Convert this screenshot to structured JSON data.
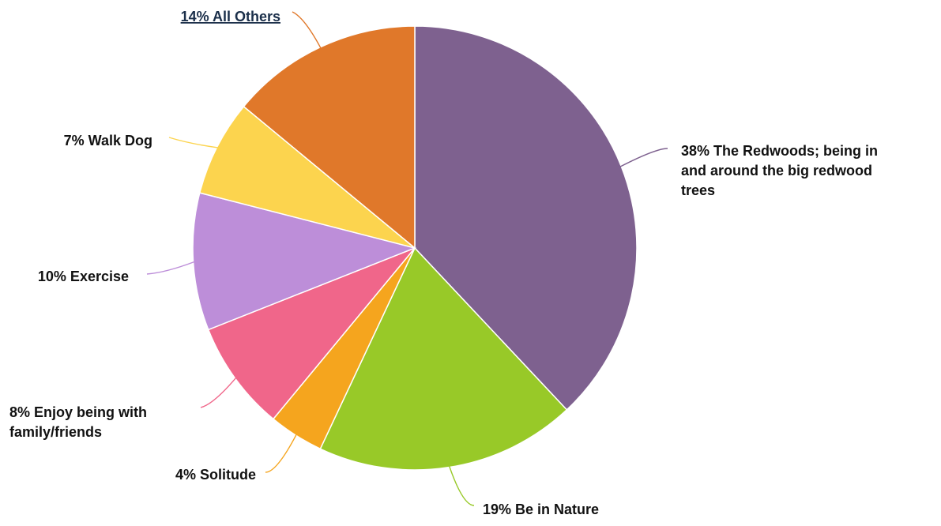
{
  "chart_data": {
    "type": "pie",
    "title": "",
    "start": "top",
    "direction": "clockwise",
    "slices": [
      {
        "label": "38% The Redwoods; being in and around the big redwood trees",
        "value": 38,
        "color": "#7e618f"
      },
      {
        "label": "19% Be in Nature",
        "value": 19,
        "color": "#98c928"
      },
      {
        "label": "4% Solitude",
        "value": 4,
        "color": "#f5a51e"
      },
      {
        "label": "8% Enjoy being with family/friends",
        "value": 8,
        "color": "#f0668a"
      },
      {
        "label": "10% Exercise",
        "value": 10,
        "color": "#bd8ed9"
      },
      {
        "label": "7% Walk Dog",
        "value": 7,
        "color": "#fcd44e"
      },
      {
        "label": "14% All Others",
        "value": 14,
        "color": "#e0782a"
      }
    ]
  }
}
